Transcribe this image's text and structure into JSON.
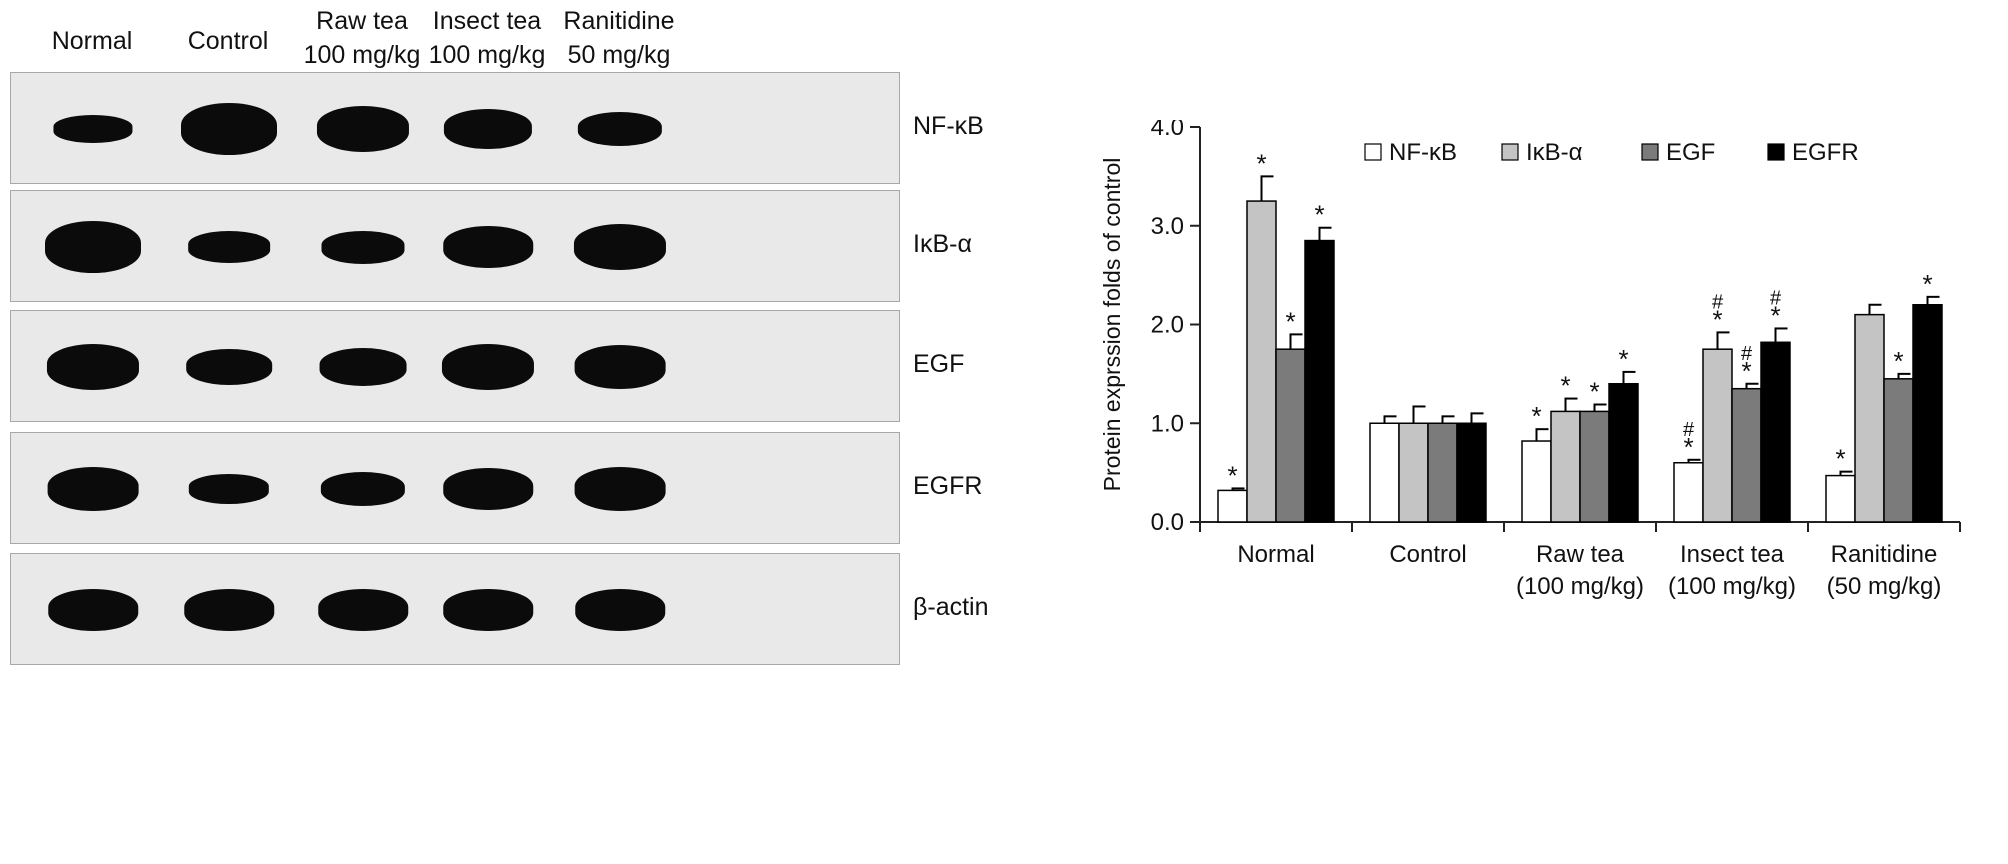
{
  "blot": {
    "lanes": [
      {
        "line1": "Normal",
        "line2": ""
      },
      {
        "line1": "Control",
        "line2": ""
      },
      {
        "line1": "Raw tea",
        "line2": "100 mg/kg"
      },
      {
        "line1": "Insect tea",
        "line2": "100 mg/kg"
      },
      {
        "line1": "Ranitidine",
        "line2": "50 mg/kg"
      }
    ],
    "rows": [
      {
        "label": "NF-κB",
        "band_intensity": [
          0.35,
          1.0,
          0.85,
          0.7,
          0.55
        ]
      },
      {
        "label": "IκB-α",
        "band_intensity": [
          1.0,
          0.45,
          0.5,
          0.75,
          0.85
        ]
      },
      {
        "label": "EGF",
        "band_intensity": [
          0.85,
          0.6,
          0.65,
          0.85,
          0.8
        ]
      },
      {
        "label": "EGFR",
        "band_intensity": [
          0.8,
          0.4,
          0.55,
          0.75,
          0.8
        ]
      },
      {
        "label": "β-actin",
        "band_intensity": [
          0.75,
          0.75,
          0.75,
          0.75,
          0.75
        ]
      }
    ]
  },
  "chart_data": {
    "type": "bar",
    "ylabel": "Protein exprssion folds of control",
    "ylim": [
      0,
      4
    ],
    "yticks": [
      "0.0",
      "1.0",
      "2.0",
      "3.0",
      "4.0"
    ],
    "grid": false,
    "legend_position": "top-right",
    "categories": [
      {
        "line1": "Normal",
        "line2": ""
      },
      {
        "line1": "Control",
        "line2": ""
      },
      {
        "line1": "Raw tea",
        "line2": "(100 mg/kg)"
      },
      {
        "line1": "Insect tea",
        "line2": "(100 mg/kg)"
      },
      {
        "line1": "Ranitidine",
        "line2": "(50 mg/kg)"
      }
    ],
    "series": [
      {
        "name": "NF-κB",
        "color": "#ffffff",
        "values": [
          0.32,
          1.0,
          0.82,
          0.6,
          0.47
        ],
        "errors": [
          0.02,
          0.07,
          0.12,
          0.03,
          0.04
        ],
        "marks": [
          "*",
          "",
          "*",
          "#*",
          "*"
        ]
      },
      {
        "name": "IκB-α",
        "color": "#c4c4c4",
        "values": [
          3.25,
          1.0,
          1.12,
          1.75,
          2.1
        ],
        "errors": [
          0.25,
          0.17,
          0.13,
          0.17,
          0.1
        ],
        "marks": [
          "*",
          "",
          "*",
          "#*",
          ""
        ]
      },
      {
        "name": "EGF",
        "color": "#7b7b7b",
        "values": [
          1.75,
          1.0,
          1.12,
          1.35,
          1.45
        ],
        "errors": [
          0.15,
          0.07,
          0.07,
          0.05,
          0.05
        ],
        "marks": [
          "*",
          "",
          "*",
          "#*",
          "*"
        ]
      },
      {
        "name": "EGFR",
        "color": "#000000",
        "values": [
          2.85,
          1.0,
          1.4,
          1.82,
          2.2
        ],
        "errors": [
          0.13,
          0.1,
          0.12,
          0.14,
          0.08
        ],
        "marks": [
          "*",
          "",
          "*",
          "#*",
          "*"
        ]
      }
    ]
  }
}
